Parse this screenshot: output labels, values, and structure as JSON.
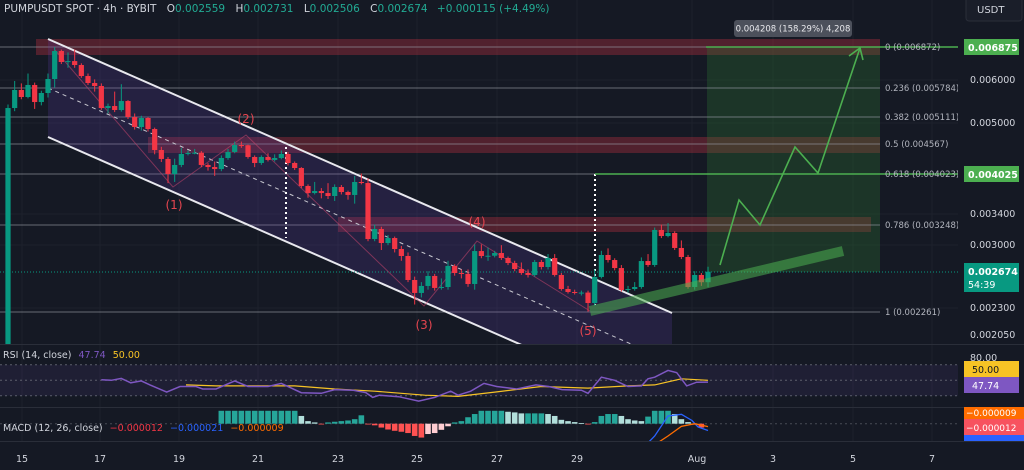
{
  "header": {
    "symbol": "PUMPUSDT SPOT · 4h · BYBIT",
    "o_label": "O",
    "o": "0.002559",
    "h_label": "H",
    "h": "0.002731",
    "l_label": "L",
    "l": "0.002506",
    "c_label": "C",
    "c": "0.002674",
    "change": "+0.000115 (+4.49%)"
  },
  "currency_button": "USDT",
  "colors": {
    "up": "#089981",
    "down": "#f23645",
    "target": "#4caf50",
    "wave_labels": "#e5454f",
    "rsi": "#7e57c2",
    "rsi_ma": "#f7c325",
    "macd": "#2962ff",
    "signal": "#ff6d00"
  },
  "price_axis": {
    "scale": "log",
    "ticks": [
      "0.006000",
      "0.005000",
      "0.003400",
      "0.003000",
      "0.002300",
      "0.002050"
    ],
    "target_high": "0.006875",
    "target_mid": "0.004025",
    "last_price": "0.002674",
    "countdown": "54:39"
  },
  "time_axis": {
    "ticks": [
      "15",
      "17",
      "19",
      "21",
      "23",
      "25",
      "27",
      "29",
      "Aug",
      "3",
      "5",
      "7"
    ]
  },
  "fib_levels": [
    {
      "label": "0 (0.006872)",
      "price": 0.006872
    },
    {
      "label": "0.236 (0.005784)",
      "price": 0.005784
    },
    {
      "label": "0.382 (0.005111)",
      "price": 0.005111
    },
    {
      "label": "0.5 (0.004567)",
      "price": 0.004567
    },
    {
      "label": "0.618 (0.004023)",
      "price": 0.004023
    },
    {
      "label": "0.786 (0.003248)",
      "price": 0.003248
    },
    {
      "label": "1 (0.002261)",
      "price": 0.002261
    }
  ],
  "measure_label": "0.004208 (158.29%) 4,208",
  "wave_labels": [
    "(1)",
    "(2)",
    "(3)",
    "(4)",
    "(5)"
  ],
  "rsi": {
    "title": "RSI (14, close)",
    "value": "47.74",
    "ma_value": "50.00",
    "axis_top": "80.00"
  },
  "macd": {
    "title": "MACD (12, 26, close)",
    "hist_value": "−0.000012",
    "macd_value": "−0.000021",
    "signal_value": "−0.000009"
  },
  "chart_data": {
    "type": "candlestick",
    "interval": "4h",
    "candle_fields": [
      "open",
      "high",
      "low",
      "close"
    ],
    "candles": [
      [
        0.0019,
        0.0054,
        0.00188,
        0.00532
      ],
      [
        0.00532,
        0.00596,
        0.00525,
        0.005739
      ],
      [
        0.005739,
        0.0059,
        0.00552,
        0.005572
      ],
      [
        0.005572,
        0.00615,
        0.00554,
        0.005861
      ],
      [
        0.005861,
        0.00592,
        0.0053,
        0.005456
      ],
      [
        0.005456,
        0.00572,
        0.00538,
        0.005667
      ],
      [
        0.005667,
        0.00615,
        0.00556,
        0.00601
      ],
      [
        0.00601,
        0.006872,
        0.0058,
        0.00676
      ],
      [
        0.00676,
        0.0068,
        0.0064,
        0.006455
      ],
      [
        0.006455,
        0.00672,
        0.0063,
        0.00648
      ],
      [
        0.00648,
        0.0068,
        0.0063,
        0.006374
      ],
      [
        0.006374,
        0.00642,
        0.00604,
        0.006086
      ],
      [
        0.006086,
        0.00615,
        0.00586,
        0.00591
      ],
      [
        0.00591,
        0.006,
        0.0057,
        0.005836
      ],
      [
        0.005836,
        0.0059,
        0.00528,
        0.00532
      ],
      [
        0.00532,
        0.00542,
        0.0052,
        0.005365
      ],
      [
        0.005365,
        0.0057,
        0.00523,
        0.005276
      ],
      [
        0.005276,
        0.00588,
        0.00524,
        0.005479
      ],
      [
        0.005479,
        0.0055,
        0.00508,
        0.005123
      ],
      [
        0.005123,
        0.0052,
        0.00486,
        0.004912
      ],
      [
        0.004912,
        0.00515,
        0.00484,
        0.005102
      ],
      [
        0.005102,
        0.00512,
        0.00482,
        0.004871
      ],
      [
        0.004871,
        0.0049,
        0.00438,
        0.00446
      ],
      [
        0.00446,
        0.00452,
        0.00424,
        0.004295
      ],
      [
        0.004295,
        0.00433,
        0.00388,
        0.004032
      ],
      [
        0.004032,
        0.0043,
        0.0039,
        0.004188
      ],
      [
        0.004188,
        0.0045,
        0.00415,
        0.004386
      ],
      [
        0.004386,
        0.00445,
        0.00436,
        0.004405
      ],
      [
        0.004405,
        0.00448,
        0.00438,
        0.00441
      ],
      [
        0.00441,
        0.00444,
        0.00415,
        0.004188
      ],
      [
        0.004188,
        0.00422,
        0.00409,
        0.004152
      ],
      [
        0.004152,
        0.00425,
        0.004,
        0.004117
      ],
      [
        0.004117,
        0.00436,
        0.00408,
        0.004313
      ],
      [
        0.004313,
        0.00448,
        0.00428,
        0.004423
      ],
      [
        0.004423,
        0.00462,
        0.0044,
        0.004554
      ],
      [
        0.004554,
        0.00462,
        0.0045,
        0.00455
      ],
      [
        0.00455,
        0.00456,
        0.0043,
        0.004331
      ],
      [
        0.004331,
        0.00436,
        0.00415,
        0.004223
      ],
      [
        0.004223,
        0.00436,
        0.00419,
        0.004331
      ],
      [
        0.004331,
        0.0044,
        0.00425,
        0.004277
      ],
      [
        0.004277,
        0.00438,
        0.00425,
        0.004313
      ],
      [
        0.004313,
        0.00445,
        0.00429,
        0.004386
      ],
      [
        0.004386,
        0.00442,
        0.00418,
        0.004223
      ],
      [
        0.004223,
        0.00425,
        0.0041,
        0.004135
      ],
      [
        0.004135,
        0.00415,
        0.0038,
        0.003834
      ],
      [
        0.003834,
        0.00386,
        0.00365,
        0.003722
      ],
      [
        0.003722,
        0.0039,
        0.0037,
        0.003754
      ],
      [
        0.003754,
        0.0038,
        0.00364,
        0.003722
      ],
      [
        0.003722,
        0.00388,
        0.00363,
        0.003676
      ],
      [
        0.003676,
        0.00386,
        0.0036,
        0.003818
      ],
      [
        0.003818,
        0.00385,
        0.0037,
        0.003738
      ],
      [
        0.003738,
        0.00376,
        0.00362,
        0.003692
      ],
      [
        0.003692,
        0.004,
        0.00356,
        0.003899
      ],
      [
        0.003899,
        0.00404,
        0.00386,
        0.003882
      ],
      [
        0.003882,
        0.00396,
        0.00304,
        0.003068
      ],
      [
        0.003068,
        0.00326,
        0.00304,
        0.0032
      ],
      [
        0.0032,
        0.00323,
        0.00293,
        0.003017
      ],
      [
        0.003017,
        0.00312,
        0.00299,
        0.003081
      ],
      [
        0.003081,
        0.0031,
        0.0029,
        0.002942
      ],
      [
        0.002942,
        0.00298,
        0.0028,
        0.002857
      ],
      [
        0.002857,
        0.0029,
        0.00256,
        0.002583
      ],
      [
        0.002583,
        0.00262,
        0.00233,
        0.002446
      ],
      [
        0.002446,
        0.00256,
        0.0024,
        0.002519
      ],
      [
        0.002519,
        0.00268,
        0.00248,
        0.002627
      ],
      [
        0.002627,
        0.00265,
        0.00247,
        0.002498
      ],
      [
        0.002498,
        0.0026,
        0.00248,
        0.002508
      ],
      [
        0.002508,
        0.0028,
        0.00248,
        0.00274
      ],
      [
        0.00274,
        0.00276,
        0.00263,
        0.00266
      ],
      [
        0.00266,
        0.0027,
        0.0026,
        0.00265
      ],
      [
        0.00265,
        0.0027,
        0.00251,
        0.00254
      ],
      [
        0.00254,
        0.003,
        0.00248,
        0.002917
      ],
      [
        0.002917,
        0.003,
        0.00283,
        0.002857
      ],
      [
        0.002857,
        0.00296,
        0.0028,
        0.00286
      ],
      [
        0.00286,
        0.00292,
        0.00284,
        0.002893
      ],
      [
        0.002893,
        0.00299,
        0.00281,
        0.002833
      ],
      [
        0.002833,
        0.00285,
        0.00275,
        0.002774
      ],
      [
        0.002774,
        0.0028,
        0.00268,
        0.002705
      ],
      [
        0.002705,
        0.00278,
        0.00264,
        0.00266
      ],
      [
        0.00266,
        0.0027,
        0.00261,
        0.002638
      ],
      [
        0.002638,
        0.00281,
        0.00262,
        0.002786
      ],
      [
        0.002786,
        0.00281,
        0.0027,
        0.002728
      ],
      [
        0.002728,
        0.00288,
        0.0027,
        0.002833
      ],
      [
        0.002833,
        0.00288,
        0.00262,
        0.002638
      ],
      [
        0.002638,
        0.00266,
        0.00247,
        0.002487
      ],
      [
        0.002487,
        0.00252,
        0.00244,
        0.002456
      ],
      [
        0.002456,
        0.00248,
        0.00243,
        0.002446
      ],
      [
        0.002446,
        0.00247,
        0.00242,
        0.00245
      ],
      [
        0.00245,
        0.00247,
        0.002261,
        0.002345
      ],
      [
        0.002345,
        0.0027,
        0.00232,
        0.002616
      ],
      [
        0.002616,
        0.00292,
        0.0026,
        0.002869
      ],
      [
        0.002869,
        0.00295,
        0.00278,
        0.002809
      ],
      [
        0.002809,
        0.00283,
        0.00269,
        0.002716
      ],
      [
        0.002716,
        0.00275,
        0.00246,
        0.002477
      ],
      [
        0.002477,
        0.00252,
        0.00245,
        0.002487
      ],
      [
        0.002487,
        0.00256,
        0.00247,
        0.002508
      ],
      [
        0.002508,
        0.00284,
        0.00249,
        0.002797
      ],
      [
        0.002797,
        0.00288,
        0.00273,
        0.002751
      ],
      [
        0.002751,
        0.00322,
        0.00273,
        0.003187
      ],
      [
        0.003187,
        0.00326,
        0.00308,
        0.003107
      ],
      [
        0.003107,
        0.00328,
        0.00309,
        0.003147
      ],
      [
        0.003147,
        0.00317,
        0.00293,
        0.002955
      ],
      [
        0.002955,
        0.00305,
        0.00282,
        0.002845
      ],
      [
        0.002845,
        0.00287,
        0.00249,
        0.002508
      ],
      [
        0.002508,
        0.00268,
        0.00248,
        0.002638
      ],
      [
        0.002638,
        0.00266,
        0.00252,
        0.002559
      ],
      [
        0.002559,
        0.002731,
        0.002506,
        0.002674
      ]
    ],
    "rsi_points": [
      [
        14,
        50.8
      ],
      [
        15.5,
        50
      ],
      [
        17,
        52.4
      ],
      [
        18.4,
        46.8
      ],
      [
        20,
        49.2
      ],
      [
        21.3,
        44
      ],
      [
        23.8,
        34.8
      ],
      [
        25.8,
        42
      ],
      [
        28.2,
        42
      ],
      [
        29.2,
        38.8
      ],
      [
        31.2,
        38.8
      ],
      [
        34,
        49.2
      ],
      [
        36,
        42
      ],
      [
        39,
        42
      ],
      [
        41,
        46
      ],
      [
        44,
        34
      ],
      [
        47,
        33.2
      ],
      [
        49,
        38
      ],
      [
        51.7,
        37.2
      ],
      [
        53.7,
        34
      ],
      [
        54.7,
        28
      ],
      [
        55.7,
        30.8
      ],
      [
        58.6,
        28.8
      ],
      [
        61.6,
        23.2
      ],
      [
        64,
        28
      ],
      [
        66.4,
        36
      ],
      [
        67.5,
        30.8
      ],
      [
        69.4,
        36
      ],
      [
        71.4,
        46
      ],
      [
        73.3,
        42
      ],
      [
        76.3,
        38.8
      ],
      [
        79.2,
        44
      ],
      [
        81.1,
        42
      ],
      [
        83.1,
        38
      ],
      [
        86,
        37.2
      ],
      [
        87,
        33.2
      ],
      [
        89,
        54
      ],
      [
        91,
        50
      ],
      [
        93,
        42
      ],
      [
        95,
        42.8
      ],
      [
        96,
        52
      ],
      [
        97,
        54
      ],
      [
        99,
        62.8
      ],
      [
        100.3,
        60
      ],
      [
        101.8,
        42.8
      ],
      [
        103.3,
        47.6
      ],
      [
        105,
        47.74
      ]
    ],
    "rsi_ma_points": [
      [
        26.7,
        44
      ],
      [
        31.2,
        42.8
      ],
      [
        43,
        42.8
      ],
      [
        49,
        38.8
      ],
      [
        55,
        36
      ],
      [
        62.5,
        30.8
      ],
      [
        67.5,
        29.2
      ],
      [
        73,
        34.8
      ],
      [
        80,
        42
      ],
      [
        87,
        40
      ],
      [
        93,
        42.8
      ],
      [
        97,
        44
      ],
      [
        101,
        52
      ],
      [
        105,
        50
      ]
    ],
    "rsi_levels": [
      70,
      50,
      30
    ],
    "macd_hist_start_index": 32,
    "macd_hist": [
      4e-05,
      4e-05,
      4e-05,
      4e-05,
      4e-05,
      4e-05,
      4e-05,
      4e-05,
      4e-05,
      4e-05,
      4e-05,
      4e-05,
      2.4e-05,
      8e-06,
      4e-06,
      -1e-06,
      4e-06,
      6e-06,
      8e-06,
      1e-05,
      1.4e-05,
      2.6e-05,
      -2e-06,
      -5e-06,
      -1.2e-05,
      -1.8e-05,
      -2.2e-05,
      -2.5e-05,
      -2.9e-05,
      -3.8e-05,
      -4.3e-05,
      -3.2e-05,
      -2.9e-05,
      -1.9e-05,
      -8e-06,
      4e-06,
      8e-06,
      2e-05,
      3e-05,
      4e-05,
      4e-05,
      4e-05,
      4e-05,
      3.7e-05,
      3.5e-05,
      3.2e-05,
      3.2e-05,
      3.2e-05,
      3.2e-05,
      3e-05,
      2.4e-05,
      1.2e-05,
      8e-06,
      5e-06,
      2e-06,
      -2e-06,
      5e-06,
      2.4e-05,
      3e-05,
      3e-05,
      2.4e-05,
      1.4e-05,
      1e-05,
      8e-06,
      2.2e-05,
      4e-05,
      4e-05,
      4e-05,
      3e-05,
      1.4e-05,
      5e-06,
      -3e-06,
      -1.2e-05
    ],
    "macd_line_points": [
      [
        95.4,
        -7.2e-05
      ],
      [
        97,
        -3.8e-05
      ],
      [
        99,
        2.4e-05
      ],
      [
        101,
        2.9e-05
      ],
      [
        102.6,
        1e-05
      ],
      [
        103.5,
        -1e-05
      ],
      [
        105,
        -2.1e-05
      ]
    ],
    "signal_line_points": [
      [
        96.5,
        -7.2e-05
      ],
      [
        99,
        -3.8e-05
      ],
      [
        101,
        -8e-06
      ],
      [
        103,
        0.0
      ],
      [
        105,
        -9e-06
      ]
    ]
  }
}
